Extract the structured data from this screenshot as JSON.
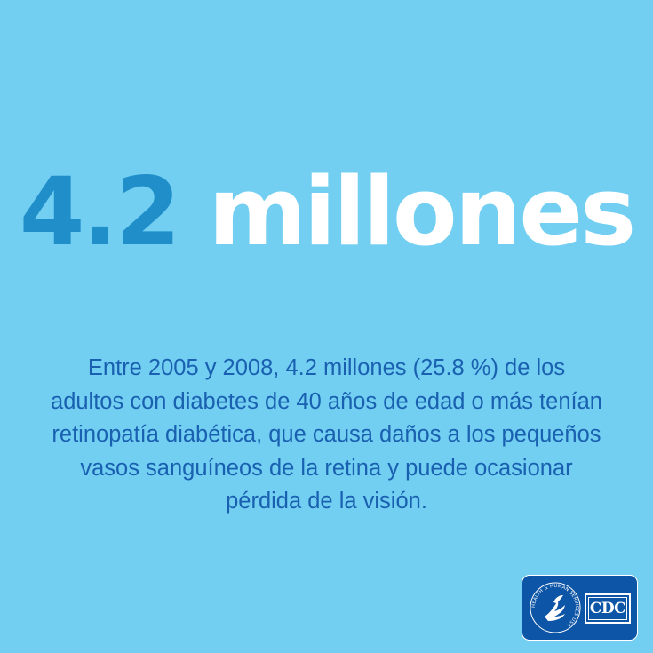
{
  "headline": {
    "number": "4.2",
    "word": "millones"
  },
  "body_text": "Entre 2005 y 2008, 4.2 millones (25.8 %) de los adultos con diabetes de 40 años de edad o más tenían retinopatía diabética, que causa daños a los pequeños vasos sanguíneos de la retina y puede ocasionar pérdida de la visión.",
  "logo": {
    "seal_text": "HEALTH & HUMAN SERVICES USA",
    "cdc_text": "CDC"
  },
  "colors": {
    "background": "#72cff2",
    "number": "#1f8ec9",
    "word": "#ffffff",
    "body_text": "#1961b0",
    "logo_bg": "#0d55a6"
  }
}
